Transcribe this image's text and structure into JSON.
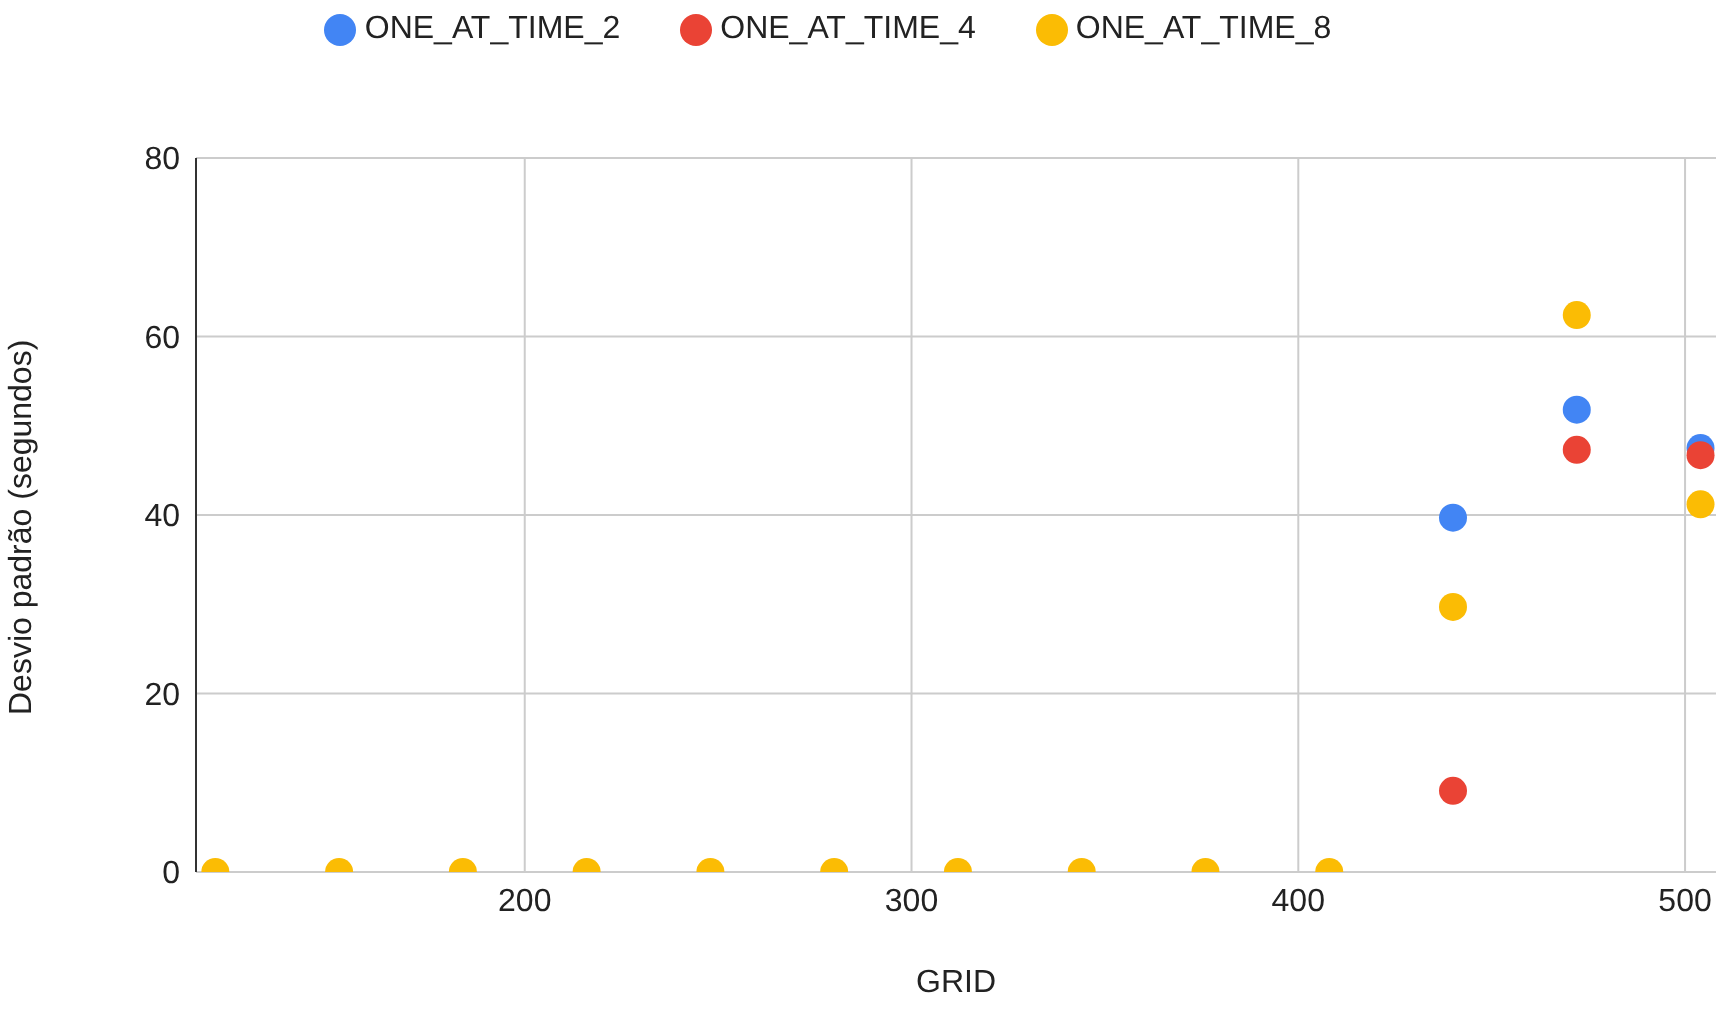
{
  "chart_data": {
    "type": "scatter",
    "xlabel": "GRID",
    "ylabel": "Desvio padrão (segundos)",
    "x": [
      120,
      152,
      184,
      216,
      248,
      280,
      312,
      344,
      376,
      408,
      440,
      472,
      504
    ],
    "series": [
      {
        "name": "ONE_AT_TIME_2",
        "color": "#4285f4",
        "values": [
          null,
          null,
          null,
          null,
          null,
          null,
          null,
          null,
          null,
          null,
          39.7,
          51.8,
          47.5
        ]
      },
      {
        "name": "ONE_AT_TIME_4",
        "color": "#ea4335",
        "values": [
          null,
          null,
          null,
          null,
          null,
          null,
          null,
          null,
          null,
          null,
          9.1,
          47.3,
          46.7
        ]
      },
      {
        "name": "ONE_AT_TIME_8",
        "color": "#fbbc04",
        "values": [
          0,
          0,
          0,
          0,
          0,
          0,
          0,
          0,
          0,
          0,
          29.7,
          62.4,
          41.2
        ]
      }
    ],
    "xlim": [
      115,
      508
    ],
    "xticks": [
      200,
      300,
      400,
      500
    ],
    "ylim": [
      0,
      80
    ],
    "yticks": [
      0,
      20,
      40,
      60,
      80
    ],
    "grid": true,
    "legend": "top",
    "marker": "circle"
  }
}
